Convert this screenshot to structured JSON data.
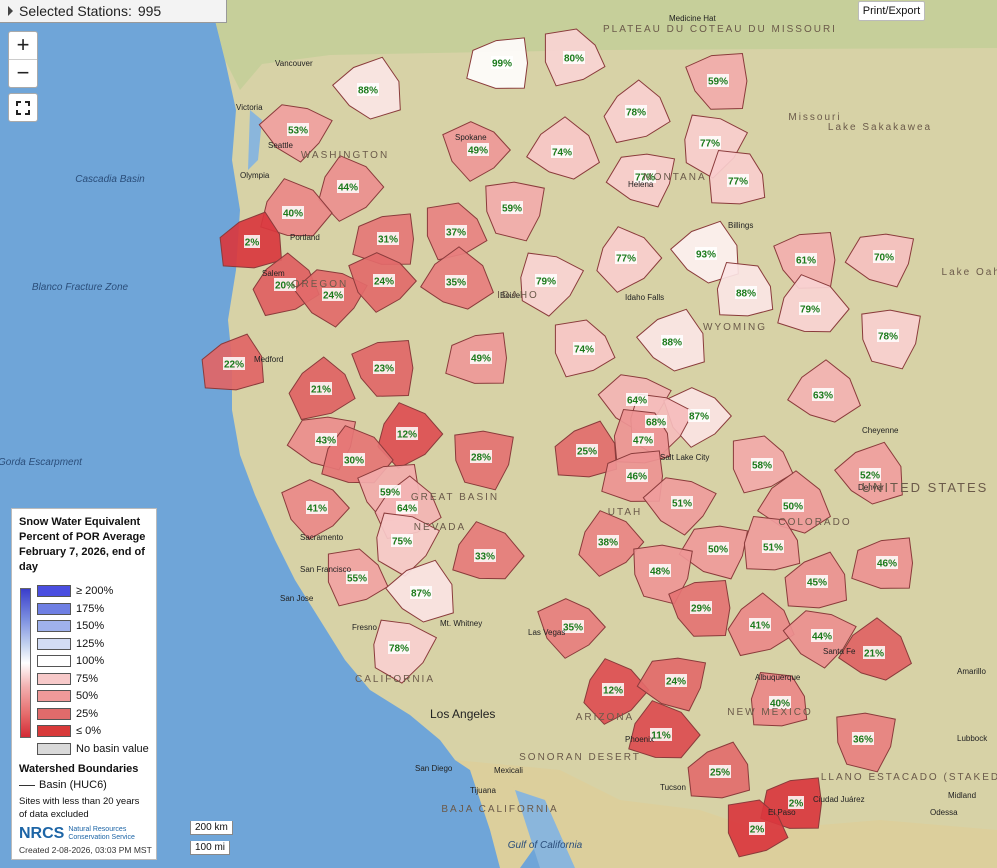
{
  "header": {
    "selected_stations_label": "Selected Stations:",
    "selected_stations_count": "995"
  },
  "toolbar": {
    "print_export": "Print/Export",
    "zoom_in": "+",
    "zoom_out": "−"
  },
  "legend": {
    "title": "Snow Water Equivalent Percent of POR Average February 7, 2026, end of day",
    "classes": [
      {
        "label": "≥ 200%",
        "color": "#4a4ee0"
      },
      {
        "label": "175%",
        "color": "#6f7fe3"
      },
      {
        "label": "150%",
        "color": "#9fb1ec"
      },
      {
        "label": "125%",
        "color": "#d2dcf4"
      },
      {
        "label": "100%",
        "color": "#ffffff"
      },
      {
        "label": "75%",
        "color": "#f7c9c9"
      },
      {
        "label": "50%",
        "color": "#ef9a9a"
      },
      {
        "label": "25%",
        "color": "#e06b6b"
      },
      {
        "label": "≤ 0%",
        "color": "#d83a3a"
      },
      {
        "label": "No basin value",
        "color": "#d9d9d9"
      }
    ],
    "watershed_title": "Watershed Boundaries",
    "basin_label": "Basin (HUC6)",
    "note": "Sites with less than 20 years of data excluded",
    "agency": "NRCS",
    "agency_full": "Natural Resources Conservation Service",
    "created": "Created 2-08-2026, 03:03 PM MST"
  },
  "scale": {
    "km": "200 km",
    "mi": "100 mi"
  },
  "colors": {
    "ocean": "#6fa5d8",
    "land": "#d7d2a6",
    "canada": "#c6cf9a",
    "mexico": "#d9cf9a",
    "basin_stroke": "#7a3a3a"
  },
  "basins": [
    {
      "label": "99%",
      "pct": 99
    },
    {
      "label": "80%",
      "pct": 80
    },
    {
      "label": "88%",
      "pct": 88
    },
    {
      "label": "59%",
      "pct": 59
    },
    {
      "label": "78%",
      "pct": 78
    },
    {
      "label": "53%",
      "pct": 53
    },
    {
      "label": "49%",
      "pct": 49
    },
    {
      "label": "74%",
      "pct": 74
    },
    {
      "label": "77%",
      "pct": 77
    },
    {
      "label": "44%",
      "pct": 44
    },
    {
      "label": "77%",
      "pct": 77
    },
    {
      "label": "77%",
      "pct": 77
    },
    {
      "label": "40%",
      "pct": 40
    },
    {
      "label": "59%",
      "pct": 59
    },
    {
      "label": "2%",
      "pct": 2
    },
    {
      "label": "31%",
      "pct": 31
    },
    {
      "label": "37%",
      "pct": 37
    },
    {
      "label": "93%",
      "pct": 93
    },
    {
      "label": "61%",
      "pct": 61
    },
    {
      "label": "20%",
      "pct": 20
    },
    {
      "label": "24%",
      "pct": 24
    },
    {
      "label": "24%",
      "pct": 24
    },
    {
      "label": "35%",
      "pct": 35
    },
    {
      "label": "79%",
      "pct": 79
    },
    {
      "label": "77%",
      "pct": 77
    },
    {
      "label": "70%",
      "pct": 70
    },
    {
      "label": "88%",
      "pct": 88
    },
    {
      "label": "79%",
      "pct": 79
    },
    {
      "label": "78%",
      "pct": 78
    },
    {
      "label": "22%",
      "pct": 22
    },
    {
      "label": "49%",
      "pct": 49
    },
    {
      "label": "74%",
      "pct": 74
    },
    {
      "label": "88%",
      "pct": 88
    },
    {
      "label": "23%",
      "pct": 23
    },
    {
      "label": "21%",
      "pct": 21
    },
    {
      "label": "64%",
      "pct": 64
    },
    {
      "label": "87%",
      "pct": 87
    },
    {
      "label": "63%",
      "pct": 63
    },
    {
      "label": "68%",
      "pct": 68
    },
    {
      "label": "12%",
      "pct": 12
    },
    {
      "label": "43%",
      "pct": 43
    },
    {
      "label": "47%",
      "pct": 47
    },
    {
      "label": "30%",
      "pct": 30
    },
    {
      "label": "28%",
      "pct": 28
    },
    {
      "label": "25%",
      "pct": 25
    },
    {
      "label": "46%",
      "pct": 46
    },
    {
      "label": "58%",
      "pct": 58
    },
    {
      "label": "52%",
      "pct": 52
    },
    {
      "label": "59%",
      "pct": 59
    },
    {
      "label": "64%",
      "pct": 64
    },
    {
      "label": "51%",
      "pct": 51
    },
    {
      "label": "41%",
      "pct": 41
    },
    {
      "label": "50%",
      "pct": 50
    },
    {
      "label": "75%",
      "pct": 75
    },
    {
      "label": "38%",
      "pct": 38
    },
    {
      "label": "50%",
      "pct": 50
    },
    {
      "label": "51%",
      "pct": 51
    },
    {
      "label": "33%",
      "pct": 33
    },
    {
      "label": "48%",
      "pct": 48
    },
    {
      "label": "45%",
      "pct": 45
    },
    {
      "label": "46%",
      "pct": 46
    },
    {
      "label": "55%",
      "pct": 55
    },
    {
      "label": "87%",
      "pct": 87
    },
    {
      "label": "29%",
      "pct": 29
    },
    {
      "label": "41%",
      "pct": 41
    },
    {
      "label": "44%",
      "pct": 44
    },
    {
      "label": "35%",
      "pct": 35
    },
    {
      "label": "21%",
      "pct": 21
    },
    {
      "label": "78%",
      "pct": 78
    },
    {
      "label": "12%",
      "pct": 12
    },
    {
      "label": "24%",
      "pct": 24
    },
    {
      "label": "40%",
      "pct": 40
    },
    {
      "label": "11%",
      "pct": 11
    },
    {
      "label": "36%",
      "pct": 36
    },
    {
      "label": "25%",
      "pct": 25
    },
    {
      "label": "2%",
      "pct": 2
    },
    {
      "label": "2%",
      "pct": 2
    }
  ],
  "places": [
    "Vancouver",
    "Victoria",
    "Seattle",
    "Olympia",
    "Portland",
    "Salem",
    "Medford",
    "Spokane",
    "Helena",
    "Billings",
    "Boise",
    "Idaho Falls",
    "Salt Lake City",
    "Cheyenne",
    "Denver",
    "Sacramento",
    "San Francisco",
    "San Jose",
    "Fresno",
    "Las Vegas",
    "Los Angeles",
    "San Diego",
    "Tijuana",
    "Mexicali",
    "Phoenix",
    "Tucson",
    "Albuquerque",
    "Santa Fe",
    "El Paso",
    "Ciudad Juárez",
    "Amarillo",
    "Lubbock",
    "Midland",
    "Odessa",
    "Medicine Hat",
    "Mt. Whitney"
  ],
  "regions": [
    "OREGON",
    "NEVADA",
    "CALIFORNIA",
    "ARIZONA",
    "NEW MEXICO",
    "UTAH",
    "WYOMING",
    "IDAHO",
    "MONTANA",
    "WASHINGTON",
    "COLORADO",
    "UNITED STATES",
    "BAJA CALIFORNIA",
    "PLATEAU DU COTEAU DU MISSOURI",
    "LLANO ESTACADO (STAKED PLAIN)",
    "SONORAN DESERT",
    "GREAT BASIN",
    "Gulf of California",
    "Cascadia Basin",
    "Blanco Fracture Zone",
    "Gorda Escarpment",
    "Lake Sakakawea",
    "Lake Oahe",
    "Missouri"
  ]
}
